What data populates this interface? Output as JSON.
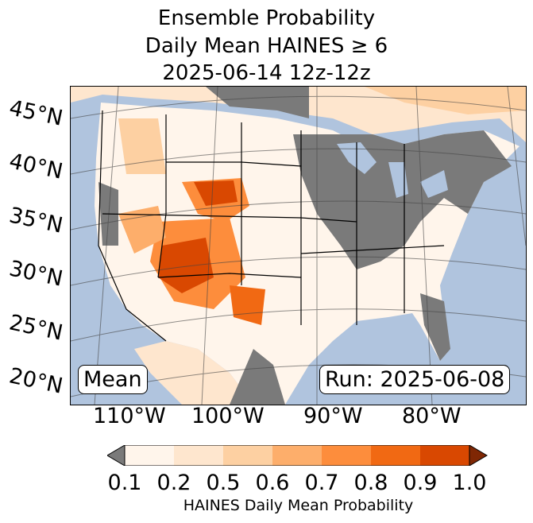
{
  "title": {
    "line1": "Ensemble Probability",
    "line2": "Daily Mean HAINES ≥ 6",
    "line3": "2025-06-14 12z-12z"
  },
  "map": {
    "ocean_color": "#b0c4de",
    "land_missing_color": "#7a7a7a",
    "mode_label": "Mean",
    "run_label": "Run: 2025-06-08",
    "lat_labels": [
      "45°N",
      "40°N",
      "35°N",
      "30°N",
      "25°N",
      "20°N"
    ],
    "lon_labels": [
      "110°W",
      "100°W",
      "90°W",
      "80°W"
    ]
  },
  "colorbar": {
    "ticks": [
      "0.1",
      "0.2",
      "0.5",
      "0.6",
      "0.7",
      "0.8",
      "0.9",
      "1.0"
    ],
    "colors": [
      "#fff5eb",
      "#fee6ce",
      "#fdd0a2",
      "#fdae6b",
      "#fd8d3c",
      "#f16913",
      "#d94801",
      "#a63603"
    ],
    "under_color": "#7a7a7a",
    "over_color": "#7f2704",
    "label": "HAINES Daily Mean Probability"
  }
}
